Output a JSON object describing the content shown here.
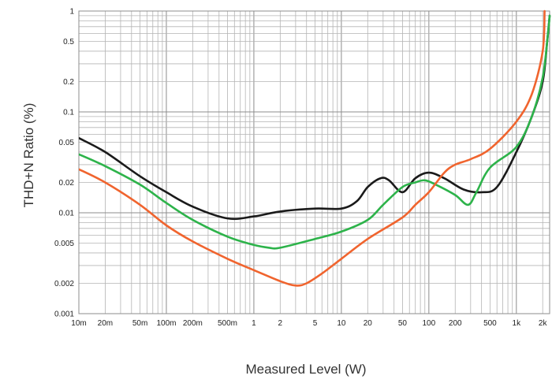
{
  "chart_data": {
    "type": "line",
    "xlabel": "Measured Level (W)",
    "ylabel": "THD+N Ratio (%)",
    "xscale": "log",
    "yscale": "log",
    "xlim": [
      0.01,
      2400
    ],
    "ylim": [
      0.001,
      1
    ],
    "grid": true,
    "x_ticks": [
      {
        "value": 0.01,
        "label": "10m"
      },
      {
        "value": 0.02,
        "label": "20m"
      },
      {
        "value": 0.05,
        "label": "50m"
      },
      {
        "value": 0.1,
        "label": "100m"
      },
      {
        "value": 0.2,
        "label": "200m"
      },
      {
        "value": 0.5,
        "label": "500m"
      },
      {
        "value": 1,
        "label": "1"
      },
      {
        "value": 2,
        "label": "2"
      },
      {
        "value": 5,
        "label": "5"
      },
      {
        "value": 10,
        "label": "10"
      },
      {
        "value": 20,
        "label": "20"
      },
      {
        "value": 50,
        "label": "50"
      },
      {
        "value": 100,
        "label": "100"
      },
      {
        "value": 200,
        "label": "200"
      },
      {
        "value": 500,
        "label": "500"
      },
      {
        "value": 1000,
        "label": "1k"
      },
      {
        "value": 2000,
        "label": "2k"
      }
    ],
    "y_ticks": [
      {
        "value": 0.001,
        "label": "0.001"
      },
      {
        "value": 0.002,
        "label": "0.002"
      },
      {
        "value": 0.005,
        "label": "0.005"
      },
      {
        "value": 0.01,
        "label": "0.01"
      },
      {
        "value": 0.02,
        "label": "0.02"
      },
      {
        "value": 0.05,
        "label": "0.05"
      },
      {
        "value": 0.1,
        "label": "0.1"
      },
      {
        "value": 0.2,
        "label": "0.2"
      },
      {
        "value": 0.5,
        "label": "0.5"
      },
      {
        "value": 1,
        "label": "1"
      }
    ],
    "series": [
      {
        "color": "#1a1a1a",
        "points": [
          [
            0.01,
            0.055
          ],
          [
            0.02,
            0.04
          ],
          [
            0.05,
            0.023
          ],
          [
            0.1,
            0.016
          ],
          [
            0.2,
            0.0115
          ],
          [
            0.5,
            0.0088
          ],
          [
            1,
            0.0092
          ],
          [
            2,
            0.0103
          ],
          [
            5,
            0.011
          ],
          [
            10,
            0.011
          ],
          [
            15,
            0.013
          ],
          [
            20,
            0.018
          ],
          [
            28,
            0.022
          ],
          [
            35,
            0.021
          ],
          [
            50,
            0.016
          ],
          [
            70,
            0.022
          ],
          [
            100,
            0.025
          ],
          [
            150,
            0.022
          ],
          [
            250,
            0.017
          ],
          [
            400,
            0.016
          ],
          [
            600,
            0.018
          ],
          [
            1000,
            0.04
          ],
          [
            1500,
            0.09
          ],
          [
            2000,
            0.2
          ],
          [
            2250,
            0.5
          ],
          [
            2400,
            0.9
          ]
        ]
      },
      {
        "color": "#2db34a",
        "points": [
          [
            0.01,
            0.038
          ],
          [
            0.02,
            0.029
          ],
          [
            0.05,
            0.019
          ],
          [
            0.1,
            0.0125
          ],
          [
            0.2,
            0.0085
          ],
          [
            0.5,
            0.0058
          ],
          [
            1,
            0.0048
          ],
          [
            1.5,
            0.0045
          ],
          [
            2,
            0.0045
          ],
          [
            5,
            0.0055
          ],
          [
            10,
            0.0065
          ],
          [
            20,
            0.0085
          ],
          [
            30,
            0.012
          ],
          [
            50,
            0.018
          ],
          [
            70,
            0.02
          ],
          [
            90,
            0.021
          ],
          [
            120,
            0.019
          ],
          [
            200,
            0.015
          ],
          [
            280,
            0.012
          ],
          [
            350,
            0.016
          ],
          [
            500,
            0.028
          ],
          [
            1000,
            0.045
          ],
          [
            1500,
            0.09
          ],
          [
            2000,
            0.22
          ],
          [
            2300,
            0.6
          ],
          [
            2400,
            0.9
          ]
        ]
      },
      {
        "color": "#f0642e",
        "points": [
          [
            0.01,
            0.027
          ],
          [
            0.02,
            0.02
          ],
          [
            0.05,
            0.012
          ],
          [
            0.1,
            0.0075
          ],
          [
            0.2,
            0.0052
          ],
          [
            0.5,
            0.0035
          ],
          [
            1,
            0.0027
          ],
          [
            2,
            0.0021
          ],
          [
            3,
            0.0019
          ],
          [
            4,
            0.002
          ],
          [
            6,
            0.0025
          ],
          [
            10,
            0.0035
          ],
          [
            20,
            0.0055
          ],
          [
            50,
            0.009
          ],
          [
            70,
            0.012
          ],
          [
            100,
            0.016
          ],
          [
            150,
            0.025
          ],
          [
            200,
            0.03
          ],
          [
            300,
            0.034
          ],
          [
            500,
            0.043
          ],
          [
            1000,
            0.08
          ],
          [
            1500,
            0.15
          ],
          [
            2000,
            0.4
          ],
          [
            2100,
            1.0
          ]
        ]
      }
    ]
  }
}
